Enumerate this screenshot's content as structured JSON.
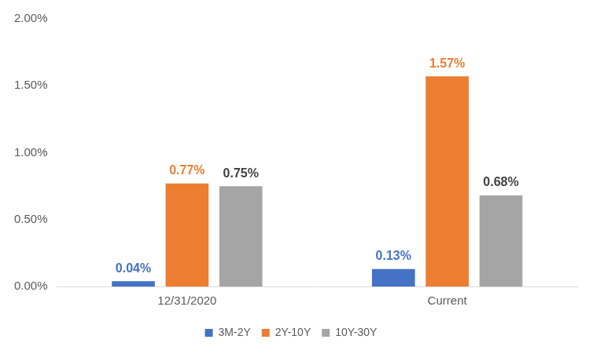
{
  "chart_data": {
    "type": "bar",
    "categories": [
      "12/31/2020",
      "Current"
    ],
    "series": [
      {
        "name": "3M-2Y",
        "color": "#4472c4",
        "values": [
          0.04,
          0.13
        ],
        "value_labels": [
          "0.04%",
          "0.13%"
        ]
      },
      {
        "name": "2Y-10Y",
        "color": "#ed7d31",
        "values": [
          0.77,
          1.57
        ],
        "value_labels": [
          "0.77%",
          "1.57%"
        ]
      },
      {
        "name": "10Y-30Y",
        "color": "#a5a5a5",
        "values": [
          0.75,
          0.68
        ],
        "value_labels": [
          "0.75%",
          "0.68%"
        ]
      }
    ],
    "ylim": [
      0,
      2
    ],
    "yticks": [
      {
        "value": 0,
        "label": "0.00%"
      },
      {
        "value": 0.5,
        "label": "0.50%"
      },
      {
        "value": 1,
        "label": "1.00%"
      },
      {
        "value": 1.5,
        "label": "1.50%"
      },
      {
        "value": 2,
        "label": "2.00%"
      }
    ],
    "grid": false,
    "legend": "bottom",
    "data_labels": true
  }
}
